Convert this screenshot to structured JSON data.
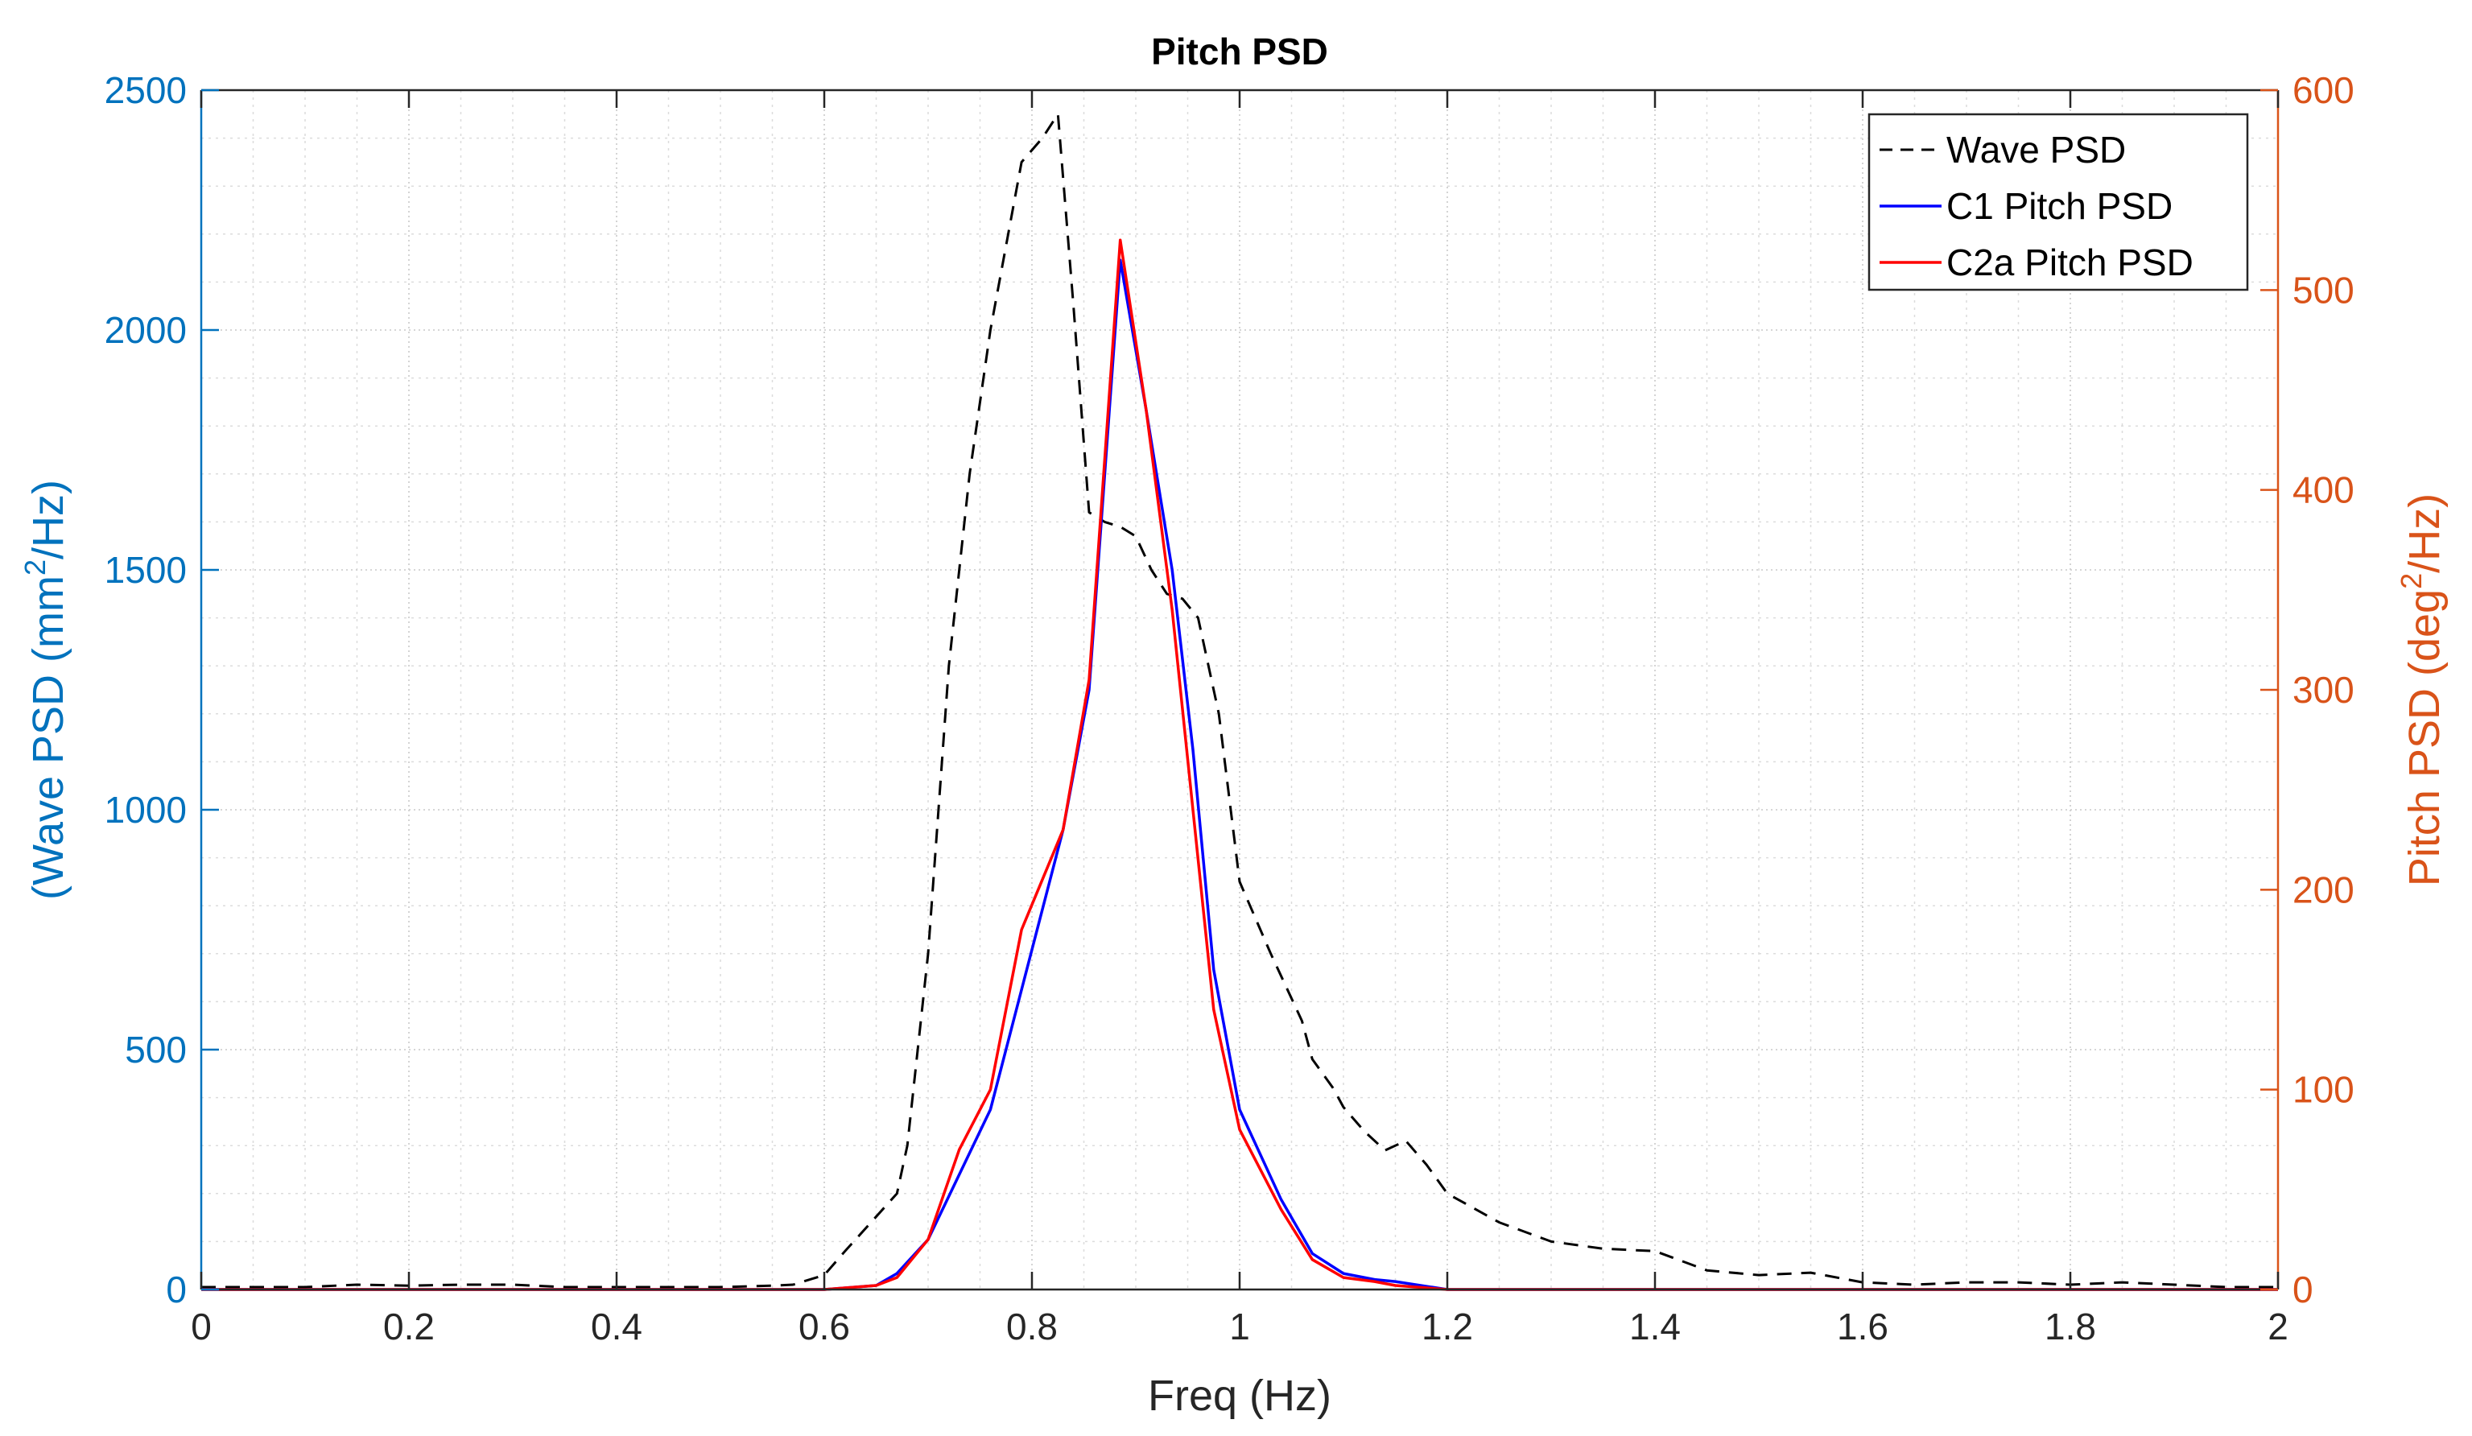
{
  "chart_data": {
    "type": "line",
    "title": "Pitch PSD",
    "xlabel": "Freq (Hz)",
    "ylabel_left": {
      "prefix": "(Wave PSD (mm",
      "sup": "2",
      "suffix": "/Hz)"
    },
    "ylabel_right": {
      "prefix": "Pitch PSD (deg",
      "sup": "2",
      "suffix": "/Hz)"
    },
    "xlim": [
      0,
      2
    ],
    "ylim_left": [
      0,
      2500
    ],
    "ylim_right": [
      0,
      600
    ],
    "x_ticks": [
      0,
      0.2,
      0.4,
      0.6,
      0.8,
      1,
      1.2,
      1.4,
      1.6,
      1.8,
      2
    ],
    "x_tick_labels": [
      "0",
      "0.2",
      "0.4",
      "0.6",
      "0.8",
      "1",
      "1.2",
      "1.4",
      "1.6",
      "1.8",
      "2"
    ],
    "y_left_ticks": [
      0,
      500,
      1000,
      1500,
      2000,
      2500
    ],
    "y_left_tick_labels": [
      "0",
      "500",
      "1000",
      "1500",
      "2000",
      "2500"
    ],
    "y_right_ticks": [
      0,
      100,
      200,
      300,
      400,
      500,
      600
    ],
    "y_right_tick_labels": [
      "0",
      "100",
      "200",
      "300",
      "400",
      "500",
      "600"
    ],
    "grid": true,
    "minor_grid": true,
    "legend_position": "top-right",
    "colors": {
      "left_axis": "#0072BD",
      "right_axis": "#D95319",
      "wave": "#000000",
      "c1": "#0000FF",
      "c2a": "#FF0000",
      "axes": "#262626",
      "grid": "#dcdcdc"
    },
    "series": [
      {
        "name": "Wave PSD",
        "axis": "left",
        "style": "dashed",
        "x": [
          0,
          0.05,
          0.1,
          0.15,
          0.2,
          0.25,
          0.3,
          0.35,
          0.4,
          0.45,
          0.5,
          0.55,
          0.57,
          0.6,
          0.62,
          0.645,
          0.67,
          0.68,
          0.7,
          0.72,
          0.74,
          0.76,
          0.79,
          0.81,
          0.825,
          0.84,
          0.855,
          0.87,
          0.885,
          0.9,
          0.915,
          0.93,
          0.945,
          0.96,
          0.98,
          1.0,
          1.03,
          1.06,
          1.07,
          1.09,
          1.1,
          1.12,
          1.14,
          1.16,
          1.18,
          1.2,
          1.25,
          1.3,
          1.35,
          1.4,
          1.45,
          1.5,
          1.55,
          1.6,
          1.65,
          1.7,
          1.75,
          1.8,
          1.85,
          1.9,
          1.95,
          2.0
        ],
        "y": [
          5,
          5,
          5,
          10,
          8,
          10,
          10,
          5,
          5,
          5,
          5,
          8,
          10,
          30,
          80,
          140,
          200,
          300,
          700,
          1300,
          1700,
          2000,
          2350,
          2400,
          2450,
          2050,
          1620,
          1600,
          1590,
          1570,
          1500,
          1450,
          1440,
          1400,
          1200,
          850,
          700,
          560,
          480,
          420,
          380,
          330,
          290,
          310,
          260,
          200,
          140,
          100,
          85,
          80,
          40,
          30,
          35,
          15,
          10,
          15,
          15,
          10,
          15,
          10,
          5,
          5
        ]
      },
      {
        "name": "C1 Pitch PSD",
        "axis": "right",
        "style": "solid",
        "x": [
          0,
          0.2,
          0.4,
          0.6,
          0.65,
          0.67,
          0.7,
          0.76,
          0.8,
          0.83,
          0.855,
          0.885,
          0.91,
          0.935,
          0.955,
          0.975,
          1.0,
          1.04,
          1.07,
          1.1,
          1.13,
          1.15,
          1.2,
          1.25,
          1.3,
          2.0
        ],
        "y": [
          0,
          0,
          0,
          0,
          2,
          8,
          25,
          90,
          170,
          230,
          300,
          515,
          440,
          360,
          270,
          160,
          90,
          45,
          18,
          8,
          5,
          4,
          0,
          0,
          0,
          0
        ]
      },
      {
        "name": "C2a Pitch PSD",
        "axis": "right",
        "style": "solid",
        "x": [
          0,
          0.2,
          0.4,
          0.6,
          0.65,
          0.67,
          0.7,
          0.73,
          0.76,
          0.79,
          0.83,
          0.855,
          0.885,
          0.91,
          0.935,
          0.955,
          0.975,
          1.0,
          1.04,
          1.07,
          1.1,
          1.13,
          1.15,
          1.2,
          1.25,
          1.3,
          2.0
        ],
        "y": [
          0,
          0,
          0,
          0,
          2,
          6,
          25,
          70,
          100,
          180,
          230,
          305,
          525,
          440,
          340,
          240,
          140,
          80,
          40,
          15,
          6,
          4,
          2,
          0,
          0,
          0,
          0
        ]
      }
    ]
  }
}
